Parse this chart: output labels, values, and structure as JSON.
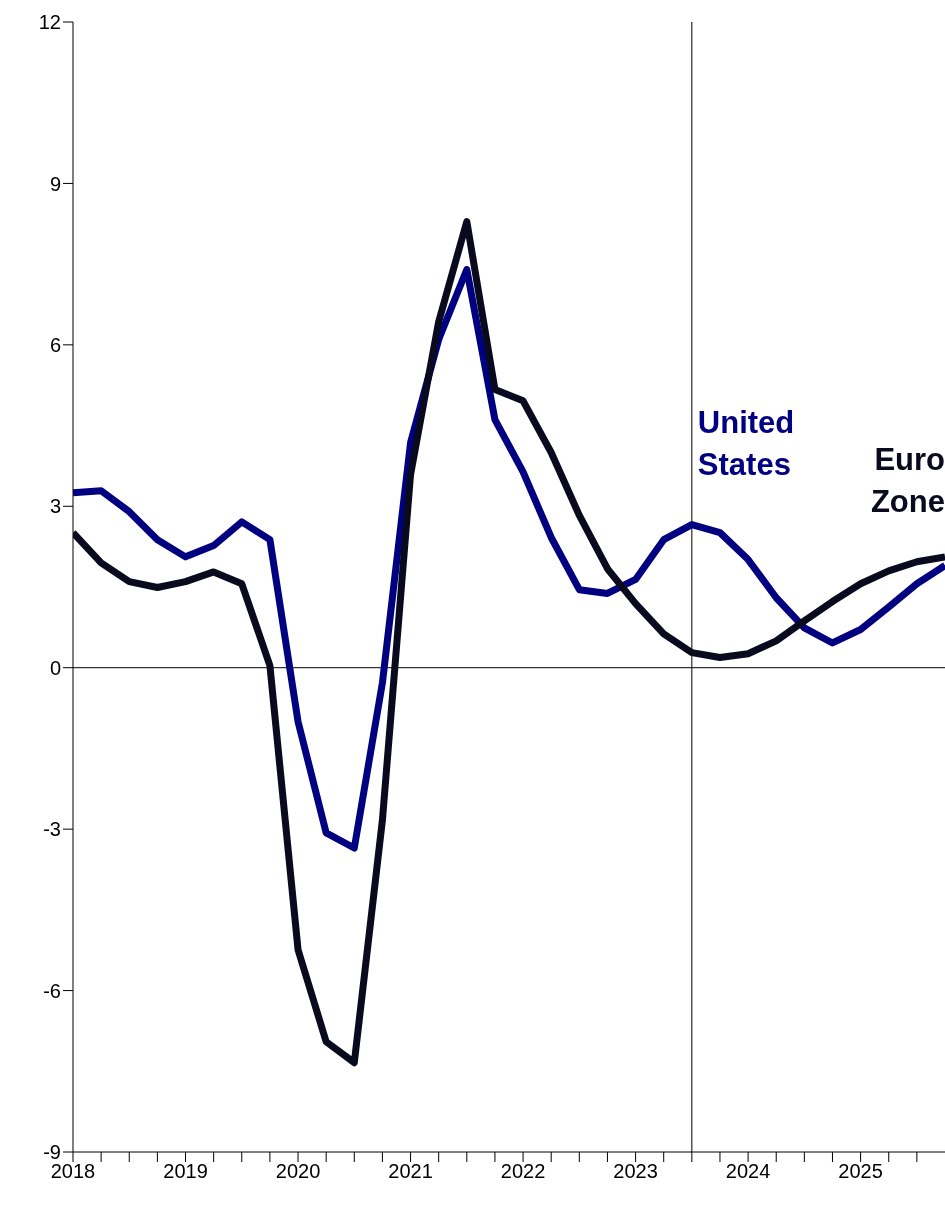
{
  "chart_data": {
    "type": "line",
    "x": [
      2018,
      2018.25,
      2018.5,
      2018.75,
      2019,
      2019.25,
      2019.5,
      2019.75,
      2020,
      2020.25,
      2020.5,
      2020.75,
      2021,
      2021.25,
      2021.5,
      2021.75,
      2022,
      2022.25,
      2022.5,
      2022.75,
      2023,
      2023.25,
      2023.5,
      2023.75,
      2024,
      2024.25,
      2024.5,
      2024.75,
      2025,
      2025.25,
      2025.5,
      2025.75
    ],
    "series": [
      {
        "name": "United States",
        "color": "#000080",
        "values": [
          3.25,
          3.29,
          2.9,
          2.38,
          2.06,
          2.27,
          2.71,
          2.38,
          -1.0,
          -3.07,
          -3.35,
          -0.28,
          4.18,
          6.1,
          7.4,
          4.61,
          3.64,
          2.42,
          1.45,
          1.38,
          1.64,
          2.38,
          2.66,
          2.51,
          2.01,
          1.3,
          0.74,
          0.46,
          0.71,
          1.13,
          1.56,
          1.9
        ]
      },
      {
        "name": "Euro Zone",
        "color": "#0a0a1e",
        "values": [
          2.51,
          1.95,
          1.6,
          1.49,
          1.6,
          1.78,
          1.56,
          0.04,
          -5.24,
          -6.95,
          -7.34,
          -2.83,
          3.59,
          6.43,
          8.29,
          5.17,
          4.96,
          4.0,
          2.83,
          1.84,
          1.19,
          0.63,
          0.28,
          0.19,
          0.26,
          0.5,
          0.87,
          1.23,
          1.56,
          1.8,
          1.97,
          2.06
        ]
      }
    ],
    "xlim": [
      2018,
      2025.75
    ],
    "xticks": [
      2018,
      {
        "value": 2018.25,
        "label": null
      },
      {
        "value": 2018.5,
        "label": null
      },
      {
        "value": 2018.75,
        "label": null
      },
      2019,
      {
        "value": 2019.25,
        "label": null
      },
      {
        "value": 2019.5,
        "label": null
      },
      {
        "value": 2019.75,
        "label": null
      },
      2020,
      {
        "value": 2020.25,
        "label": null
      },
      {
        "value": 2020.5,
        "label": null
      },
      {
        "value": 2020.75,
        "label": null
      },
      2021,
      {
        "value": 2021.25,
        "label": null
      },
      {
        "value": 2021.5,
        "label": null
      },
      {
        "value": 2021.75,
        "label": null
      },
      2022,
      {
        "value": 2022.25,
        "label": null
      },
      {
        "value": 2022.5,
        "label": null
      },
      {
        "value": 2022.75,
        "label": null
      },
      2023,
      {
        "value": 2023.25,
        "label": null
      },
      {
        "value": 2023.5,
        "label": null
      },
      {
        "value": 2023.75,
        "label": null
      },
      2024,
      {
        "value": 2024.25,
        "label": null
      },
      {
        "value": 2024.5,
        "label": null
      },
      {
        "value": 2024.75,
        "label": null
      },
      2025,
      {
        "value": 2025.25,
        "label": null
      },
      {
        "value": 2025.5,
        "label": null
      }
    ],
    "ylim": [
      -9,
      12
    ],
    "yticks": [
      -9,
      -6,
      -3,
      0,
      3,
      6,
      9,
      12
    ],
    "ref_lines": [
      {
        "axis": "y",
        "value": 0,
        "color": "#000000"
      },
      {
        "axis": "x",
        "value": 2023.5,
        "color": "#000000"
      }
    ],
    "marker": "none",
    "line_style": "solid"
  }
}
